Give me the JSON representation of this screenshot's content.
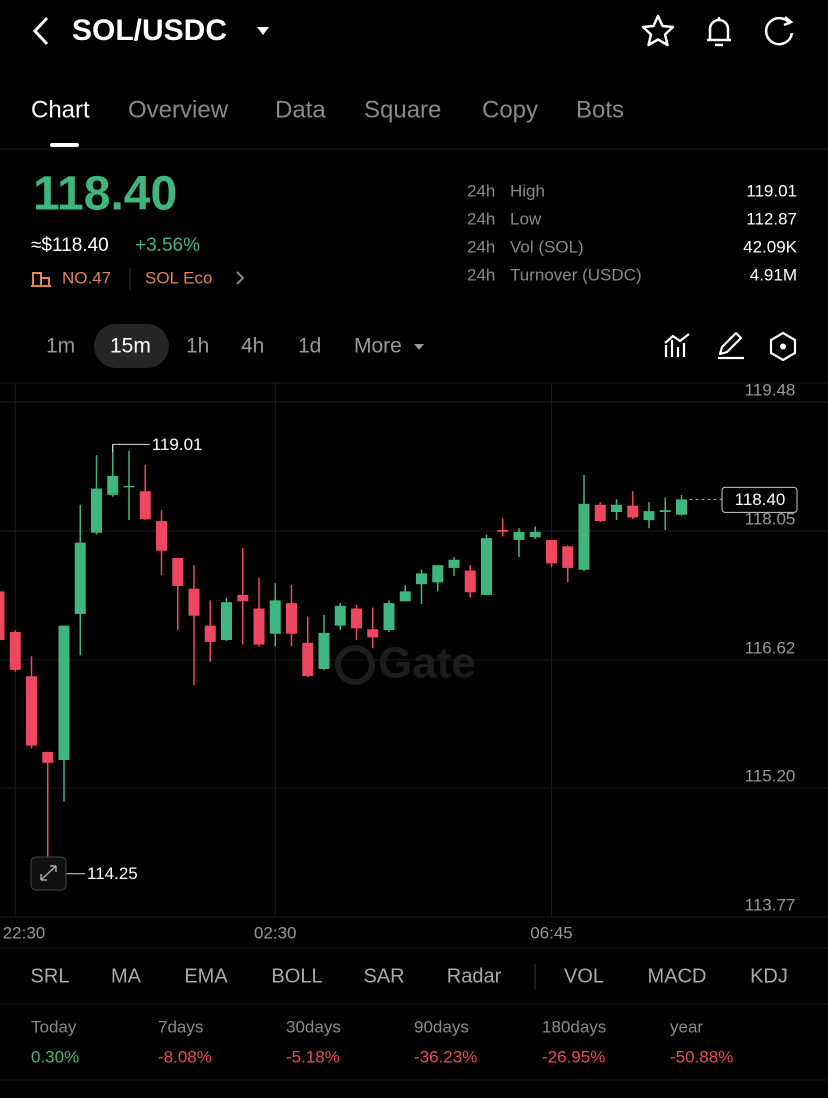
{
  "header": {
    "title": "SOL/USDC"
  },
  "tabs": [
    "Chart",
    "Overview",
    "Data",
    "Square",
    "Copy",
    "Bots"
  ],
  "ticker": {
    "price": "118.40",
    "approx": "≈$118.40",
    "change": "+3.56%",
    "rank": "NO.47",
    "tag": "SOL Eco"
  },
  "stats": [
    [
      "24h",
      "High",
      "119.01"
    ],
    [
      "24h",
      "Low",
      "112.87"
    ],
    [
      "24h",
      "Vol (SOL)",
      "42.09K"
    ],
    [
      "24h",
      "Turnover (USDC)",
      "4.91M"
    ]
  ],
  "intervals": [
    "1m",
    "15m",
    "1h",
    "4h",
    "1d",
    "More"
  ],
  "chart_data": {
    "type": "candlestick",
    "categories": [
      null,
      "22:30",
      null,
      null,
      null,
      null,
      null,
      null,
      null,
      null,
      null,
      null,
      null,
      null,
      null,
      null,
      null,
      "02:30",
      null,
      null,
      null,
      null,
      null,
      null,
      null,
      null,
      null,
      null,
      null,
      null,
      null,
      null,
      null,
      null,
      "06:45",
      null,
      null,
      null,
      null,
      null,
      null,
      null,
      null
    ],
    "open": [
      117.38,
      116.93,
      116.44,
      115.6,
      115.51,
      117.13,
      118.03,
      118.45,
      118.54,
      118.49,
      118.16,
      117.75,
      117.41,
      117.0,
      116.84,
      117.34,
      117.19,
      116.91,
      117.25,
      116.81,
      116.52,
      117.0,
      117.19,
      116.96,
      116.95,
      117.27,
      117.46,
      117.48,
      117.64,
      117.61,
      117.34,
      118.06,
      117.95,
      117.98,
      117.95,
      117.88,
      117.62,
      118.34,
      118.26,
      118.33,
      118.17,
      118.26,
      118.23
    ],
    "high": [
      117.42,
      116.95,
      116.66,
      115.6,
      117.0,
      118.34,
      118.89,
      119.01,
      118.94,
      118.78,
      118.28,
      117.75,
      117.67,
      117.28,
      117.31,
      117.86,
      117.53,
      117.47,
      117.45,
      117.1,
      117.12,
      117.25,
      117.23,
      117.2,
      117.28,
      117.45,
      117.62,
      117.67,
      117.76,
      117.67,
      118.01,
      118.19,
      118.08,
      118.1,
      117.95,
      117.89,
      118.67,
      118.37,
      118.4,
      118.49,
      118.37,
      118.42,
      118.45
    ],
    "low": [
      116.82,
      116.49,
      115.64,
      114.25,
      115.05,
      116.67,
      118.01,
      118.43,
      118.17,
      118.17,
      117.56,
      116.95,
      116.34,
      116.6,
      116.83,
      116.79,
      116.77,
      116.77,
      116.77,
      116.43,
      116.51,
      116.95,
      116.84,
      116.75,
      116.93,
      117.27,
      117.24,
      117.38,
      117.55,
      117.31,
      117.34,
      117.99,
      117.76,
      117.96,
      117.65,
      117.48,
      117.6,
      118.15,
      118.17,
      118.18,
      118.08,
      118.06,
      118.22
    ],
    "close": [
      116.84,
      116.51,
      115.67,
      115.48,
      117.0,
      117.92,
      118.52,
      118.66,
      118.55,
      118.18,
      117.83,
      117.44,
      117.11,
      116.82,
      117.26,
      117.27,
      116.79,
      117.28,
      116.91,
      116.44,
      116.92,
      117.22,
      116.97,
      116.87,
      117.25,
      117.38,
      117.58,
      117.67,
      117.73,
      117.37,
      117.97,
      118.04,
      118.04,
      118.04,
      117.69,
      117.64,
      118.35,
      118.16,
      118.34,
      118.2,
      118.27,
      118.28,
      118.4
    ],
    "up_color": "#3fb67f",
    "down_color": "#ef4760",
    "ylim": [
      113.77,
      119.69
    ],
    "yticks": [
      119.48,
      118.05,
      116.62,
      {
        "value": 115.2,
        "label": "115.20"
      },
      113.77
    ],
    "grid": true,
    "annotations": {
      "high": "119.01",
      "low": "114.25",
      "last": "118.40"
    },
    "watermark": "Gate"
  },
  "indicators": [
    "SRL",
    "MA",
    "EMA",
    "BOLL",
    "SAR",
    "Radar",
    "VOL",
    "MACD",
    "KDJ"
  ],
  "performance": [
    [
      "Today",
      "0.30%"
    ],
    [
      "7days",
      "-8.08%"
    ],
    [
      "30days",
      "-5.18%"
    ],
    [
      "90days",
      "-36.23%"
    ],
    [
      "180days",
      "-26.95%"
    ],
    [
      "year",
      "-50.88%"
    ]
  ]
}
